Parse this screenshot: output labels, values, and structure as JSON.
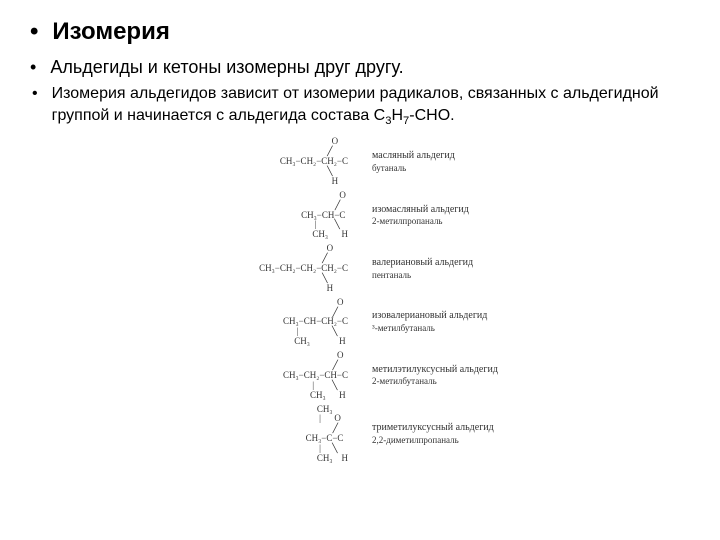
{
  "title": "Изомерия",
  "sub_bullet": "Альдегиды и кетоны изомерны друг другу.",
  "body_bullet_prefix": "Изомерия альдегидов зависит от изомерии радикалов, связанных с альдегидной группой и начинается с альдегида состава ",
  "formula_c": "С",
  "formula_3": "3",
  "formula_h": "Н",
  "formula_7": "7",
  "formula_cho": "-СНО.",
  "isomers": [
    {
      "formula": "                       O\n                     ╱\nCH₃−CH₂−CH₂−C\n                     ╲\n                       H",
      "common": "масляный альдегид",
      "iupac": "бутаналь"
    },
    {
      "formula": "                 O\n               ╱\nCH₃−CH−C\n      |        ╲\n     CH₃      H",
      "common": "изомасляный альдегид",
      "iupac": "2-метилпропаналь"
    },
    {
      "formula": "                              O\n                            ╱\nCH₃−CH₂−CH₂−CH₂−C\n                            ╲\n                              H",
      "common": "валериановый альдегид",
      "iupac": "пентаналь"
    },
    {
      "formula": "                        O\n                      ╱\nCH₃−CH−CH₂−C\n      |               ╲\n     CH₃             H",
      "common": "изовалериановый альдегид",
      "iupac": "³-метилбутаналь"
    },
    {
      "formula": "                        O\n                      ╱\nCH₃−CH₂−CH−C\n             |        ╲\n            CH₃      H",
      "common": "метилэтилуксусный альдегид",
      "iupac": "2-метилбутаналь"
    },
    {
      "formula": "     CH₃\n      |      O\n            ╱\nCH₃−C−C\n      |     ╲\n     CH₃    H",
      "common": "триметилуксусный альдегид",
      "iupac": "2,2-диметилпропаналь"
    }
  ]
}
